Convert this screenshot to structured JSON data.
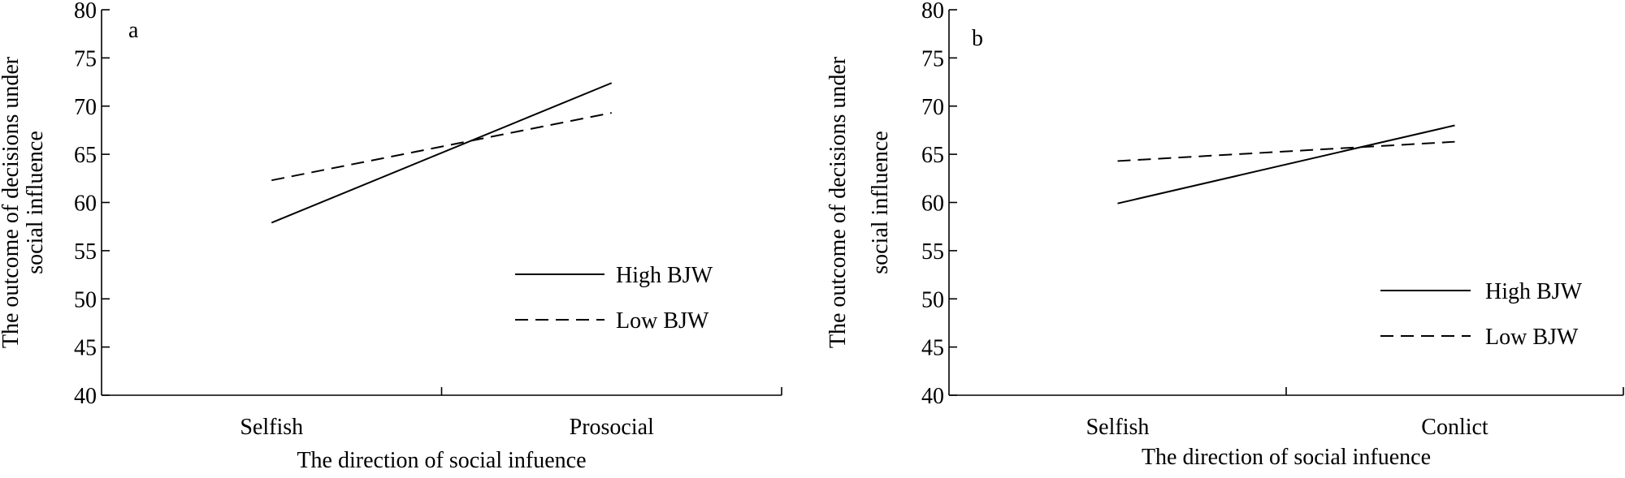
{
  "chart_data": [
    {
      "type": "line",
      "panel_label": "a",
      "categories": [
        "Selfish",
        "Prosocial"
      ],
      "series": [
        {
          "name": "High BJW",
          "values": [
            57.9,
            72.4
          ],
          "style": "solid"
        },
        {
          "name": "Low BJW",
          "values": [
            62.3,
            69.3
          ],
          "style": "dashed"
        }
      ],
      "xlabel": "The direction of social infuence",
      "ylabel_lines": [
        "The outcome of decisions under",
        "social influence"
      ],
      "ylim": [
        40,
        80
      ],
      "yticks": [
        "40",
        "45",
        "50",
        "55",
        "60",
        "65",
        "70",
        "75",
        "80"
      ],
      "legend_position": "lower-right",
      "grid": false
    },
    {
      "type": "line",
      "panel_label": "b",
      "categories": [
        "Selfish",
        "Conlict"
      ],
      "series": [
        {
          "name": "High BJW",
          "values": [
            59.9,
            68.0
          ],
          "style": "solid"
        },
        {
          "name": "Low BJW",
          "values": [
            64.3,
            66.3
          ],
          "style": "dashed"
        }
      ],
      "xlabel": "The direction of social infuence",
      "ylabel_lines": [
        "The outcome of decisions under",
        "social influence"
      ],
      "ylim": [
        40,
        80
      ],
      "yticks": [
        "40",
        "45",
        "50",
        "55",
        "60",
        "65",
        "70",
        "75",
        "80"
      ],
      "legend_position": "lower-right",
      "grid": false
    }
  ]
}
